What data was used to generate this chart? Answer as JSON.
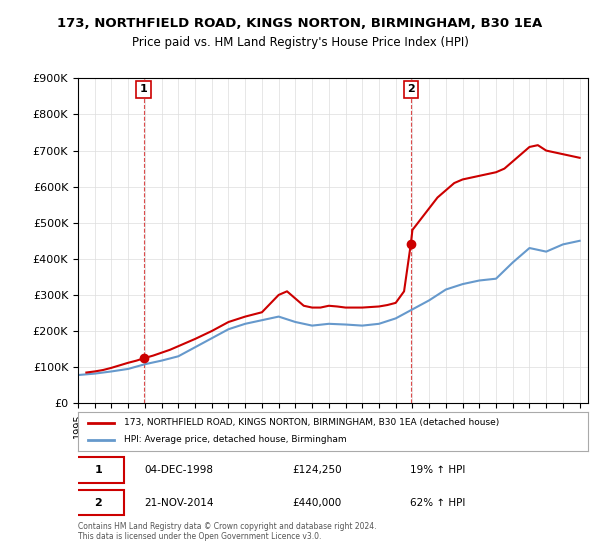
{
  "title": "173, NORTHFIELD ROAD, KINGS NORTON, BIRMINGHAM, B30 1EA",
  "subtitle": "Price paid vs. HM Land Registry's House Price Index (HPI)",
  "hpi_label": "HPI: Average price, detached house, Birmingham",
  "house_label": "173, NORTHFIELD ROAD, KINGS NORTON, BIRMINGHAM, B30 1EA (detached house)",
  "footnote": "Contains HM Land Registry data © Crown copyright and database right 2024.\nThis data is licensed under the Open Government Licence v3.0.",
  "sale1_date": 1998.92,
  "sale1_price": 124250,
  "sale1_label": "04-DEC-1998",
  "sale1_text": "£124,250",
  "sale1_hpi": "19% ↑ HPI",
  "sale2_date": 2014.9,
  "sale2_price": 440000,
  "sale2_label": "21-NOV-2014",
  "sale2_text": "£440,000",
  "sale2_hpi": "62% ↑ HPI",
  "ylim": [
    0,
    900000
  ],
  "xlim": [
    1995,
    2025.5
  ],
  "house_color": "#cc0000",
  "hpi_color": "#6699cc",
  "vline_color": "#cc0000",
  "background_color": "#ffffff",
  "years": [
    1995,
    1996,
    1997,
    1998,
    1999,
    2000,
    2001,
    2002,
    2003,
    2004,
    2005,
    2006,
    2007,
    2008,
    2009,
    2010,
    2011,
    2012,
    2013,
    2014,
    2015,
    2016,
    2017,
    2018,
    2019,
    2020,
    2021,
    2022,
    2023,
    2024,
    2025
  ],
  "hpi_values": [
    78000,
    82000,
    88000,
    95000,
    108000,
    118000,
    130000,
    155000,
    180000,
    205000,
    220000,
    230000,
    240000,
    225000,
    215000,
    220000,
    218000,
    215000,
    220000,
    235000,
    260000,
    285000,
    315000,
    330000,
    340000,
    345000,
    390000,
    430000,
    420000,
    440000,
    450000
  ],
  "house_values_x": [
    1995.5,
    1996,
    1996.5,
    1997,
    1997.5,
    1998,
    1998.5,
    1998.92,
    1999.5,
    2000,
    2000.5,
    2001,
    2002,
    2003,
    2004,
    2005,
    2006,
    2007,
    2007.5,
    2008,
    2008.5,
    2009,
    2009.5,
    2010,
    2010.5,
    2011,
    2012,
    2013,
    2013.5,
    2014,
    2014.5,
    2014.9,
    2015,
    2015.5,
    2016,
    2016.5,
    2017,
    2017.5,
    2018,
    2018.5,
    2019,
    2019.5,
    2020,
    2020.5,
    2021,
    2021.5,
    2022,
    2022.5,
    2023,
    2023.5,
    2024,
    2024.5,
    2025
  ],
  "house_values_y": [
    85000,
    88000,
    92000,
    98000,
    105000,
    112000,
    118000,
    124250,
    132000,
    140000,
    148000,
    158000,
    178000,
    200000,
    225000,
    240000,
    252000,
    300000,
    310000,
    290000,
    270000,
    265000,
    265000,
    270000,
    268000,
    265000,
    265000,
    268000,
    272000,
    278000,
    310000,
    440000,
    480000,
    510000,
    540000,
    570000,
    590000,
    610000,
    620000,
    625000,
    630000,
    635000,
    640000,
    650000,
    670000,
    690000,
    710000,
    715000,
    700000,
    695000,
    690000,
    685000,
    680000
  ]
}
